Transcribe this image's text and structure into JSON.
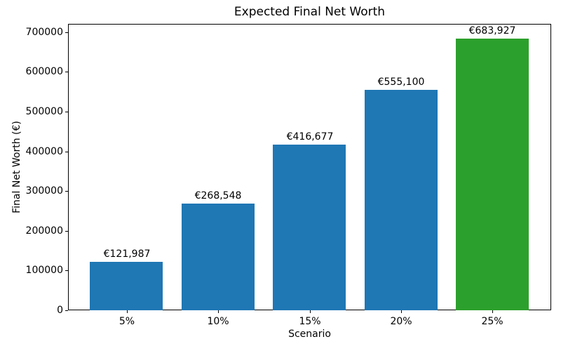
{
  "chart_data": {
    "type": "bar",
    "title": "Expected Final Net Worth",
    "xlabel": "Scenario",
    "ylabel": "Final Net Worth (€)",
    "categories": [
      "5%",
      "10%",
      "15%",
      "20%",
      "25%"
    ],
    "values": [
      121987,
      268548,
      416677,
      555100,
      683927
    ],
    "value_labels": [
      "€121,987",
      "€268,548",
      "€416,677",
      "€555,100",
      "€683,927"
    ],
    "bar_colors": [
      "#1f77b4",
      "#1f77b4",
      "#1f77b4",
      "#1f77b4",
      "#2ca02c"
    ],
    "y_ticks": [
      0,
      100000,
      200000,
      300000,
      400000,
      500000,
      600000,
      700000
    ],
    "ylim": [
      0,
      721000
    ],
    "grid": false,
    "legend_position": "none",
    "axis_color": "#000000"
  }
}
